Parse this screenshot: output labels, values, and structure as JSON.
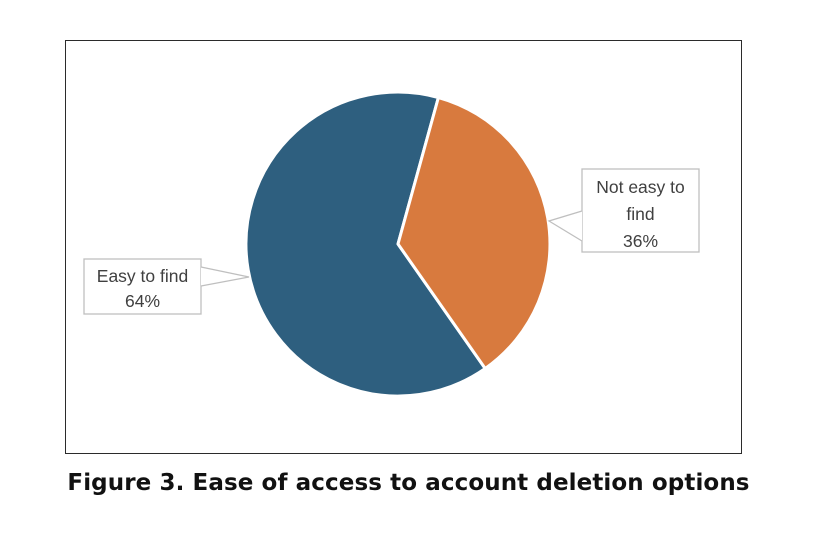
{
  "figure": {
    "caption": "Figure 3. Ease of access to account deletion options"
  },
  "chart_data": {
    "type": "pie",
    "title": "Ease of access to account deletion options",
    "slices": [
      {
        "key": "easy-to-find",
        "label": "Easy to find",
        "value": 64,
        "unit": "%",
        "color": "#2e5f7f"
      },
      {
        "key": "not-easy-to-find",
        "label": "Not easy to find",
        "value": 36,
        "unit": "%",
        "color": "#d87a3e"
      }
    ],
    "rotation_deg": 145,
    "direction": "clockwise",
    "legend": "none",
    "slice_separator_color": "#ffffff"
  },
  "callouts": {
    "easy": {
      "lines": [
        "Easy to find",
        "64%"
      ]
    },
    "not_easy": {
      "lines": [
        "Not easy to",
        "find",
        "36%"
      ]
    }
  },
  "colors": {
    "slice_easy": "#2e5f7f",
    "slice_not_easy": "#d87a3e",
    "callout_border": "#bfbfbf",
    "callout_text": "#404040",
    "chart_border": "#2b2b2b",
    "caption_text": "#111111",
    "page_background": "#ffffff"
  }
}
